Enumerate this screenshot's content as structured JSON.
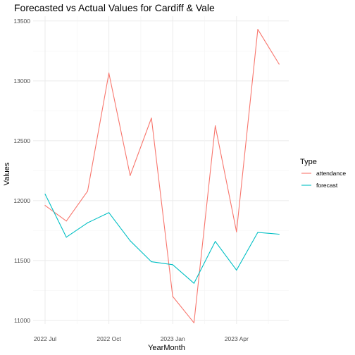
{
  "chart_data": {
    "type": "line",
    "title": "Forecasted vs Actual Values for Cardiff & Vale",
    "xlabel": "YearMonth",
    "ylabel": "Values",
    "x": [
      "2022-07",
      "2022-08",
      "2022-09",
      "2022-10",
      "2022-11",
      "2022-12",
      "2023-01",
      "2023-02",
      "2023-03",
      "2023-04",
      "2023-05",
      "2023-06"
    ],
    "x_ticks": [
      "2022 Jul",
      "2022 Oct",
      "2023 Jan",
      "2023 Apr"
    ],
    "y_ticks": [
      11000,
      11500,
      12000,
      12500,
      13000,
      13500
    ],
    "ylim": [
      10970,
      13540
    ],
    "grid": true,
    "legend": {
      "title": "Type",
      "position": "right"
    },
    "series": [
      {
        "name": "attendance",
        "color": "#f8766d",
        "values": [
          11960,
          11830,
          12080,
          13065,
          12210,
          12690,
          11200,
          10980,
          12625,
          11740,
          13430,
          13140
        ]
      },
      {
        "name": "forecast",
        "color": "#00bfc4",
        "values": [
          12055,
          11695,
          11815,
          11900,
          11665,
          11490,
          11465,
          11310,
          11660,
          11420,
          11735,
          11720
        ]
      }
    ]
  }
}
